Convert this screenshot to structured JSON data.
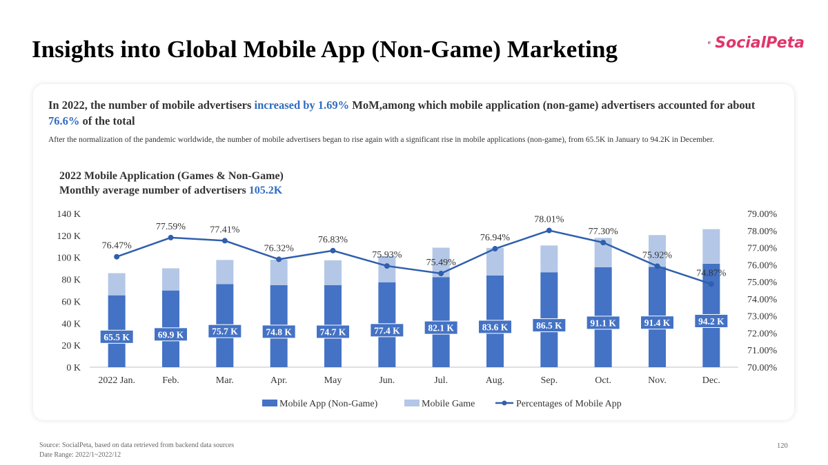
{
  "page": {
    "title": "Insights into Global Mobile App (Non-Game) Marketing",
    "logo_text": "SocialPeta",
    "headline_part1": "In 2022, the number of mobile advertisers ",
    "headline_hl1": "increased by 1.69%",
    "headline_part2": " MoM,among which mobile application (non-game) advertisers accounted for about ",
    "headline_hl2": "76.6%",
    "headline_part3": " of the total",
    "subtext": "After the normalization of the pandemic worldwide, the number of mobile advertisers began to rise again with a significant rise in mobile applications (non-game), from 65.5K in January to 94.2K in December.",
    "chart_title_line1": "2022 Mobile Application (Games & Non-Game)",
    "chart_title_line2": "Monthly average number of advertisers ",
    "chart_title_value": "105.2K",
    "source": "Source: SocialPeta, based on data retrieved from backend data sources",
    "date_range": "Date Range:  2022/1~2022/12",
    "page_number": "120"
  },
  "colors": {
    "non_game": "#4472c4",
    "game": "#b4c7e7",
    "line": "#2f5fad",
    "highlight": "#2f6bc0"
  },
  "chart_data": {
    "type": "bar",
    "stacked": true,
    "categories": [
      "2022 Jan.",
      "Feb.",
      "Mar.",
      "Apr.",
      "May",
      "Jun.",
      "Jul.",
      "Aug.",
      "Sep.",
      "Oct.",
      "Nov.",
      "Dec."
    ],
    "series": [
      {
        "name": "Mobile App (Non-Game)",
        "type": "bar",
        "values": [
          65.5,
          69.9,
          75.7,
          74.8,
          74.7,
          77.4,
          82.1,
          83.6,
          86.5,
          91.1,
          91.4,
          94.2
        ],
        "labels": [
          "65.5 K",
          "69.9 K",
          "75.7 K",
          "74.8 K",
          "74.7 K",
          "77.4 K",
          "82.1 K",
          "83.6 K",
          "86.5 K",
          "91.1 K",
          "91.4 K",
          "94.2 K"
        ]
      },
      {
        "name": "Mobile Game",
        "type": "bar",
        "values": [
          20.2,
          20.2,
          22.0,
          23.2,
          22.7,
          24.0,
          26.8,
          25.1,
          24.4,
          26.7,
          29.0,
          31.6
        ]
      },
      {
        "name": "Percentages of Mobile App",
        "type": "line",
        "axis": "right",
        "values": [
          76.47,
          77.59,
          77.41,
          76.32,
          76.83,
          75.93,
          75.49,
          76.94,
          78.01,
          77.3,
          75.92,
          74.87
        ],
        "labels": [
          "76.47%",
          "77.59%",
          "77.41%",
          "76.32%",
          "76.83%",
          "75.93%",
          "75.49%",
          "76.94%",
          "78.01%",
          "77.30%",
          "75.92%",
          "74.87%"
        ]
      }
    ],
    "y_left": {
      "min": 0,
      "max": 140,
      "step": 20,
      "ticks": [
        "0 K",
        "20 K",
        "40 K",
        "60 K",
        "80 K",
        "100 K",
        "120 K",
        "140 K"
      ]
    },
    "y_right": {
      "min": 70,
      "max": 79,
      "step": 1,
      "ticks": [
        "70.00%",
        "71.00%",
        "72.00%",
        "73.00%",
        "74.00%",
        "75.00%",
        "76.00%",
        "77.00%",
        "78.00%",
        "79.00%"
      ]
    },
    "grid": false,
    "legend_position": "bottom"
  }
}
